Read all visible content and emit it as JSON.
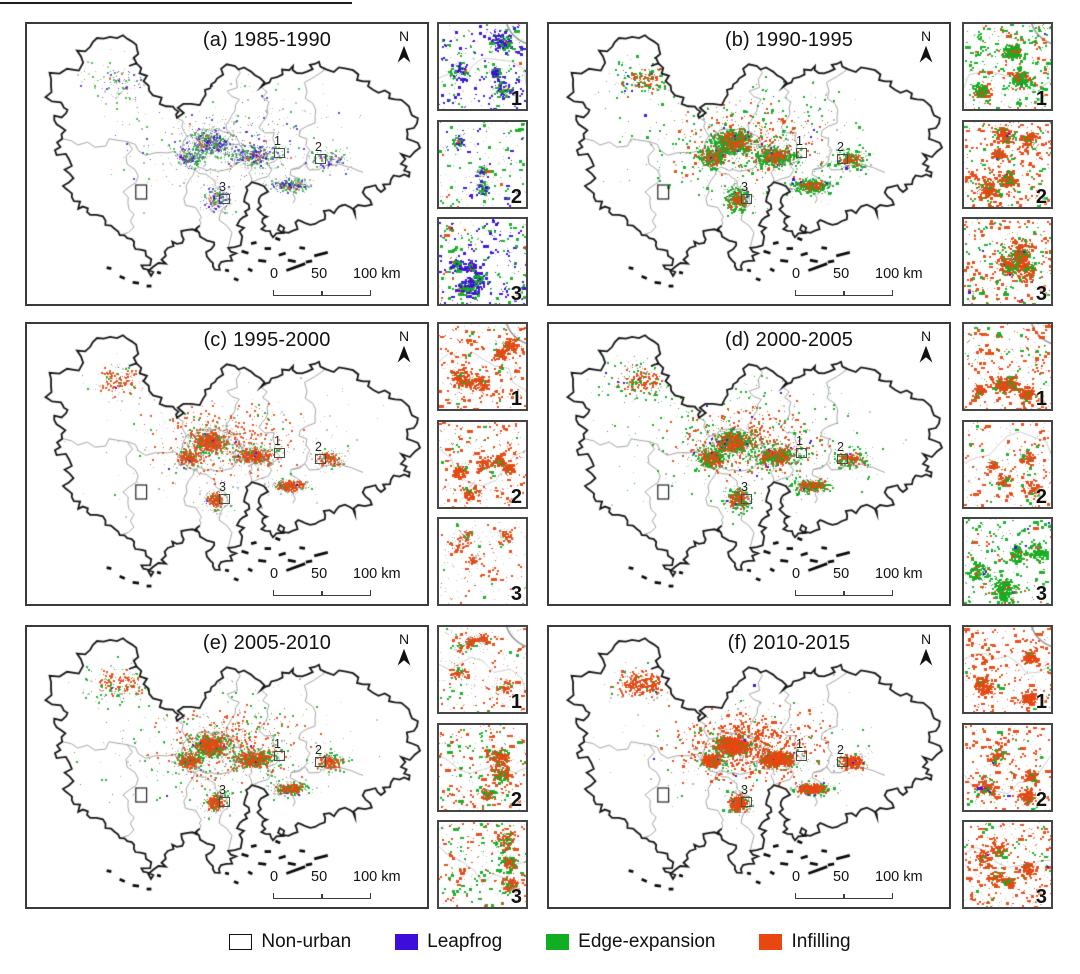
{
  "figure": {
    "north_label": "N",
    "scale_bar": {
      "t0": "0",
      "t50": "50",
      "t100": "100 km"
    },
    "marker_labels": [
      "1",
      "2",
      "3"
    ],
    "colors": {
      "non_urban": "#FFFFFF",
      "leapfrog": "#3B0EDC",
      "edge_expansion": "#12AE21",
      "infilling": "#E8470F",
      "boundary": "#161616",
      "admin_line": "#A6A6A6",
      "speck": "#8C9384"
    },
    "legend": [
      {
        "label": "Non-urban",
        "color": "#FFFFFF",
        "outlined": true
      },
      {
        "label": "Leapfrog",
        "color": "#3B0EDC",
        "outlined": false
      },
      {
        "label": "Edge-expansion",
        "color": "#12AE21",
        "outlined": false
      },
      {
        "label": "Infilling",
        "color": "#E8470F",
        "outlined": false
      }
    ],
    "panels": [
      {
        "id": "a",
        "title": "(a) 1985-1990",
        "dominant_types": [
          "Leapfrog",
          "Edge-expansion"
        ],
        "dots": {
          "density": 2400,
          "leapfrog": 0.26,
          "edge": 0.22,
          "infill": 0.05,
          "speck": 0.47,
          "alpha": 0.75,
          "size": 0.9
        },
        "insets": [
          {
            "label": "1",
            "dots": {
              "density": 620,
              "leapfrog": 0.4,
              "edge": 0.22,
              "infill": 0.02,
              "speck": 0.36
            }
          },
          {
            "label": "2",
            "dots": {
              "density": 430,
              "leapfrog": 0.14,
              "edge": 0.26,
              "infill": 0.02,
              "speck": 0.58
            }
          },
          {
            "label": "3",
            "dots": {
              "density": 660,
              "leapfrog": 0.42,
              "edge": 0.3,
              "infill": 0.02,
              "speck": 0.26
            }
          }
        ]
      },
      {
        "id": "b",
        "title": "(b) 1990-1995",
        "dominant_types": [
          "Edge-expansion",
          "Infilling"
        ],
        "dots": {
          "density": 3800,
          "leapfrog": 0.02,
          "edge": 0.4,
          "infill": 0.34,
          "speck": 0.24,
          "alpha": 0.95,
          "size": 1.15
        },
        "insets": [
          {
            "label": "1",
            "dots": {
              "density": 800,
              "leapfrog": 0.01,
              "edge": 0.58,
              "infill": 0.24,
              "speck": 0.17
            }
          },
          {
            "label": "2",
            "dots": {
              "density": 780,
              "leapfrog": 0.01,
              "edge": 0.14,
              "infill": 0.66,
              "speck": 0.19
            }
          },
          {
            "label": "3",
            "dots": {
              "density": 720,
              "leapfrog": 0.01,
              "edge": 0.22,
              "infill": 0.55,
              "speck": 0.22
            }
          }
        ]
      },
      {
        "id": "c",
        "title": "(c) 1995-2000",
        "dominant_types": [
          "Infilling"
        ],
        "dots": {
          "density": 3300,
          "leapfrog": 0.01,
          "edge": 0.1,
          "infill": 0.52,
          "speck": 0.37,
          "alpha": 0.9,
          "size": 1.0
        },
        "insets": [
          {
            "label": "1",
            "dots": {
              "density": 700,
              "leapfrog": 0.0,
              "edge": 0.06,
              "infill": 0.6,
              "speck": 0.34
            }
          },
          {
            "label": "2",
            "dots": {
              "density": 600,
              "leapfrog": 0.0,
              "edge": 0.06,
              "infill": 0.52,
              "speck": 0.42
            }
          },
          {
            "label": "3",
            "dots": {
              "density": 430,
              "leapfrog": 0.0,
              "edge": 0.04,
              "infill": 0.28,
              "speck": 0.68
            }
          }
        ]
      },
      {
        "id": "d",
        "title": "(d) 2000-2005",
        "dominant_types": [
          "Infilling",
          "Edge-expansion"
        ],
        "dots": {
          "density": 4000,
          "leapfrog": 0.02,
          "edge": 0.3,
          "infill": 0.46,
          "speck": 0.22,
          "alpha": 0.95,
          "size": 1.1
        },
        "insets": [
          {
            "label": "1",
            "dots": {
              "density": 750,
              "leapfrog": 0.0,
              "edge": 0.12,
              "infill": 0.55,
              "speck": 0.33
            }
          },
          {
            "label": "2",
            "dots": {
              "density": 520,
              "leapfrog": 0.0,
              "edge": 0.08,
              "infill": 0.38,
              "speck": 0.54
            }
          },
          {
            "label": "3",
            "dots": {
              "density": 700,
              "leapfrog": 0.02,
              "edge": 0.55,
              "infill": 0.1,
              "speck": 0.33
            }
          }
        ]
      },
      {
        "id": "e",
        "title": "(e) 2005-2010",
        "dominant_types": [
          "Infilling",
          "Edge-expansion"
        ],
        "dots": {
          "density": 3800,
          "leapfrog": 0.01,
          "edge": 0.24,
          "infill": 0.5,
          "speck": 0.25,
          "alpha": 0.9,
          "size": 1.05
        },
        "insets": [
          {
            "label": "1",
            "dots": {
              "density": 520,
              "leapfrog": 0.0,
              "edge": 0.06,
              "infill": 0.35,
              "speck": 0.59
            }
          },
          {
            "label": "2",
            "dots": {
              "density": 650,
              "leapfrog": 0.0,
              "edge": 0.18,
              "infill": 0.45,
              "speck": 0.37
            }
          },
          {
            "label": "3",
            "dots": {
              "density": 620,
              "leapfrog": 0.0,
              "edge": 0.22,
              "infill": 0.38,
              "speck": 0.4
            }
          }
        ]
      },
      {
        "id": "f",
        "title": "(f) 2010-2015",
        "dominant_types": [
          "Infilling"
        ],
        "dots": {
          "density": 4600,
          "leapfrog": 0.01,
          "edge": 0.08,
          "infill": 0.7,
          "speck": 0.21,
          "alpha": 0.95,
          "size": 1.15
        },
        "insets": [
          {
            "label": "1",
            "dots": {
              "density": 750,
              "leapfrog": 0.0,
              "edge": 0.04,
              "infill": 0.58,
              "speck": 0.38
            }
          },
          {
            "label": "2",
            "dots": {
              "density": 700,
              "leapfrog": 0.01,
              "edge": 0.1,
              "infill": 0.48,
              "speck": 0.41
            }
          },
          {
            "label": "3",
            "dots": {
              "density": 720,
              "leapfrog": 0.01,
              "edge": 0.06,
              "infill": 0.55,
              "speck": 0.38
            }
          }
        ]
      }
    ]
  }
}
